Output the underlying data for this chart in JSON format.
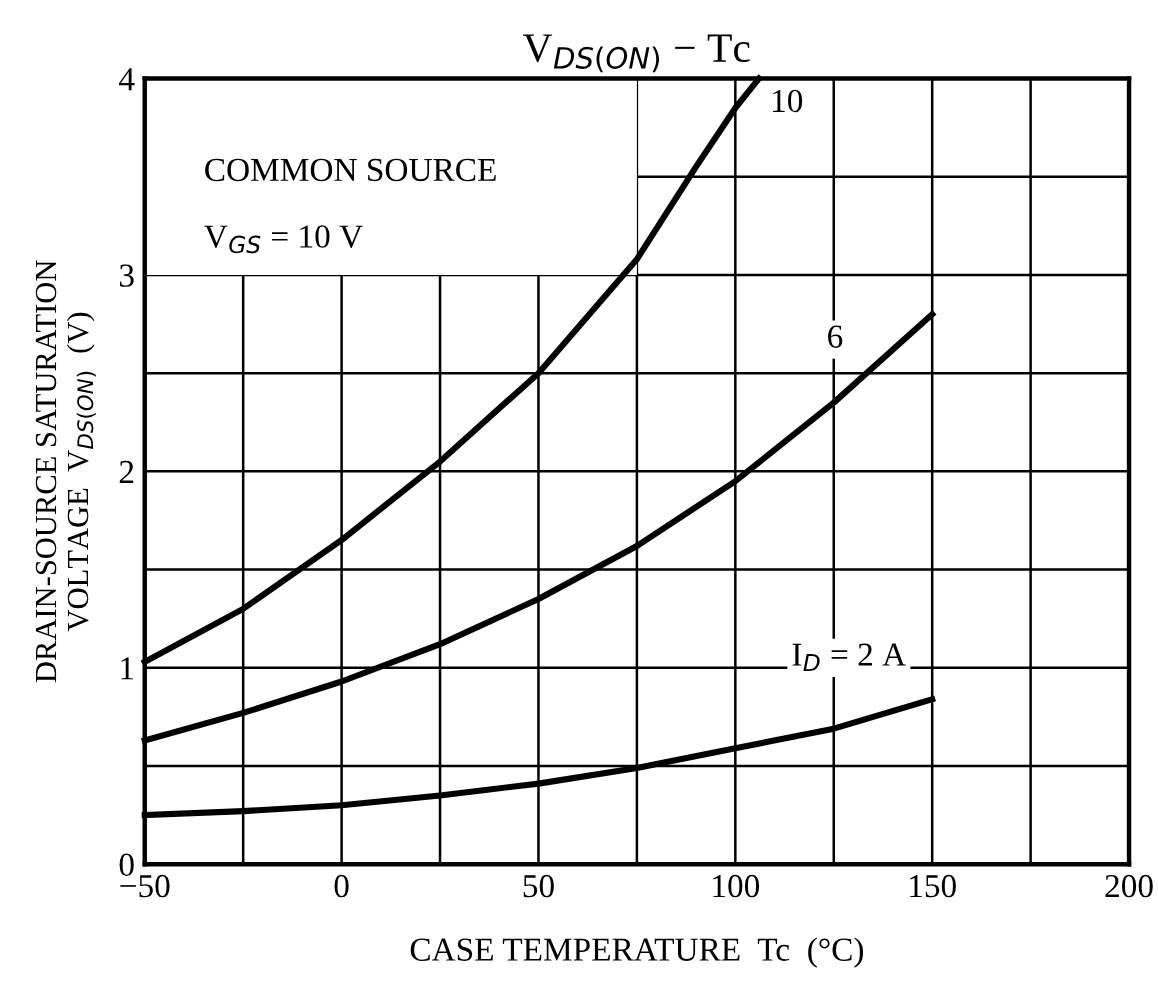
{
  "chart_data": {
    "type": "line",
    "title": "V$_{DS(ON)}$ − Tc",
    "xlabel": "CASE TEMPERATURE  Tc  (°C)",
    "ylabel": "DRAIN-SOURCE SATURATION\nVOLTAGE  V$_{DS(ON)}$  (V)",
    "annotations": [
      "COMMON SOURCE",
      "V$_{GS}$ = 10 V"
    ],
    "series": [
      {
        "name": "10",
        "color": "#000000",
        "x": [
          -50,
          -25,
          0,
          25,
          50,
          75,
          90,
          100,
          106
        ],
        "values": [
          1.03,
          1.3,
          1.65,
          2.05,
          2.5,
          3.08,
          3.55,
          3.85,
          4.0
        ]
      },
      {
        "name": "6",
        "color": "#000000",
        "x": [
          -50,
          -25,
          0,
          25,
          50,
          75,
          100,
          125,
          150
        ],
        "values": [
          0.63,
          0.77,
          0.93,
          1.12,
          1.35,
          1.62,
          1.95,
          2.35,
          2.8
        ]
      },
      {
        "name": "I$_{D}$ = 2 A",
        "color": "#000000",
        "x": [
          -50,
          -25,
          0,
          25,
          50,
          75,
          100,
          125,
          150
        ],
        "values": [
          0.25,
          0.27,
          0.3,
          0.35,
          0.41,
          0.49,
          0.59,
          0.69,
          0.84
        ]
      }
    ],
    "xlim": [
      -50,
      200
    ],
    "ylim": [
      0,
      4
    ],
    "xticks": [
      -50,
      {
        "value": -25,
        "label": null
      },
      0,
      {
        "value": 25,
        "label": null
      },
      50,
      {
        "value": 75,
        "label": null
      },
      100,
      {
        "value": 125,
        "label": null
      },
      150,
      {
        "value": 175,
        "label": null
      },
      200
    ],
    "yticks": [
      0,
      {
        "value": 0.5,
        "label": null
      },
      1,
      {
        "value": 1.5,
        "label": null
      },
      2,
      {
        "value": 2.5,
        "label": null
      },
      3,
      {
        "value": 3.5,
        "label": null
      },
      4
    ],
    "grid": true,
    "legend": false,
    "marker": "none",
    "line_style": "solid"
  }
}
